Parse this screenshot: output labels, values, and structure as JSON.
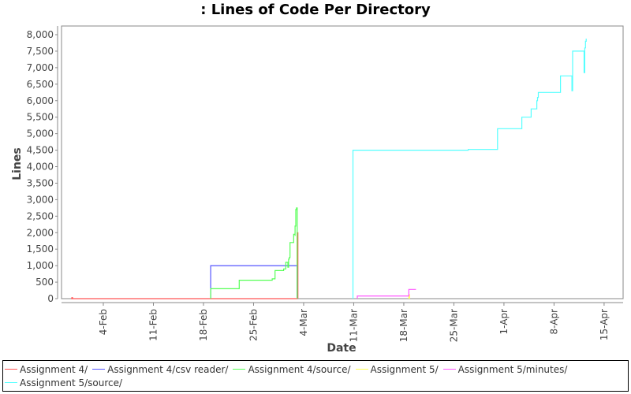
{
  "title": ": Lines of Code Per Directory",
  "chart_data": {
    "type": "line",
    "title": ": Lines of Code Per Directory",
    "xlabel": "Date",
    "ylabel": "Lines",
    "ylim": [
      0,
      8000
    ],
    "y_ticks": [
      "0",
      "500",
      "1,000",
      "1,500",
      "2,000",
      "2,500",
      "3,000",
      "3,500",
      "4,000",
      "4,500",
      "5,000",
      "5,500",
      "6,000",
      "6,500",
      "7,000",
      "7,500",
      "8,000"
    ],
    "x_ticks": [
      "4-Feb",
      "11-Feb",
      "18-Feb",
      "25-Feb",
      "4-Mar",
      "11-Mar",
      "18-Mar",
      "25-Mar",
      "1-Apr",
      "8-Apr",
      "15-Apr"
    ],
    "grid": false,
    "legend_position": "bottom",
    "series": [
      {
        "name": "Assignment 4/",
        "color": "#ff5555",
        "points": [
          [
            -4.5,
            0
          ],
          [
            -4.4,
            30
          ],
          [
            -4.3,
            0
          ],
          [
            27.1,
            0
          ],
          [
            27.1,
            2000
          ],
          [
            27.2,
            0
          ]
        ]
      },
      {
        "name": "Assignment 4/csv reader/",
        "color": "#5555ff",
        "points": [
          [
            15.0,
            0
          ],
          [
            15.0,
            1000
          ],
          [
            27.1,
            1000
          ],
          [
            27.1,
            0
          ]
        ]
      },
      {
        "name": "Assignment 4/source/",
        "color": "#55ff55",
        "points": [
          [
            15.0,
            0
          ],
          [
            15.0,
            300
          ],
          [
            19.0,
            300
          ],
          [
            19.0,
            560
          ],
          [
            23.5,
            560
          ],
          [
            23.6,
            600
          ],
          [
            24.0,
            620
          ],
          [
            24.0,
            850
          ],
          [
            25.2,
            850
          ],
          [
            25.2,
            900
          ],
          [
            25.5,
            900
          ],
          [
            25.5,
            1100
          ],
          [
            25.8,
            1100
          ],
          [
            25.8,
            950
          ],
          [
            25.9,
            1200
          ],
          [
            26.0,
            1250
          ],
          [
            26.1,
            1700
          ],
          [
            26.6,
            1700
          ],
          [
            26.6,
            1950
          ],
          [
            26.8,
            1900
          ],
          [
            26.8,
            2200
          ],
          [
            26.9,
            2700
          ],
          [
            27.0,
            2750
          ],
          [
            27.1,
            0
          ]
        ]
      },
      {
        "name": "Assignment 5/",
        "color": "#ffff55",
        "points": [
          [
            42.7,
            0
          ],
          [
            42.7,
            120
          ],
          [
            42.8,
            0
          ]
        ]
      },
      {
        "name": "Assignment 5/minutes/",
        "color": "#ff55ff",
        "points": [
          [
            35.5,
            0
          ],
          [
            35.5,
            80
          ],
          [
            42.7,
            80
          ],
          [
            42.7,
            280
          ],
          [
            43.7,
            280
          ]
        ]
      },
      {
        "name": "Assignment 5/source/",
        "color": "#55ffff",
        "points": [
          [
            34.9,
            0
          ],
          [
            34.9,
            4500
          ],
          [
            51.0,
            4500
          ],
          [
            51.0,
            4520
          ],
          [
            55.1,
            4520
          ],
          [
            55.1,
            5150
          ],
          [
            58.5,
            5150
          ],
          [
            58.5,
            5500
          ],
          [
            59.8,
            5500
          ],
          [
            59.8,
            5750
          ],
          [
            60.5,
            5750
          ],
          [
            60.6,
            6000
          ],
          [
            60.7,
            6100
          ],
          [
            60.8,
            6250
          ],
          [
            63.9,
            6250
          ],
          [
            63.9,
            6750
          ],
          [
            65.5,
            6750
          ],
          [
            65.5,
            6300
          ],
          [
            65.6,
            7500
          ],
          [
            67.2,
            7500
          ],
          [
            67.2,
            6850
          ],
          [
            67.3,
            7600
          ],
          [
            67.4,
            7800
          ],
          [
            67.5,
            7880
          ]
        ]
      }
    ]
  },
  "legend": {
    "items": [
      {
        "label": "Assignment 4/",
        "color": "#ff5555"
      },
      {
        "label": "Assignment 4/csv reader/",
        "color": "#5555ff"
      },
      {
        "label": "Assignment 4/source/",
        "color": "#55ff55"
      },
      {
        "label": "Assignment 5/",
        "color": "#ffff55"
      },
      {
        "label": "Assignment 5/minutes/",
        "color": "#ff55ff"
      },
      {
        "label": "Assignment 5/source/",
        "color": "#55ffff"
      }
    ]
  }
}
